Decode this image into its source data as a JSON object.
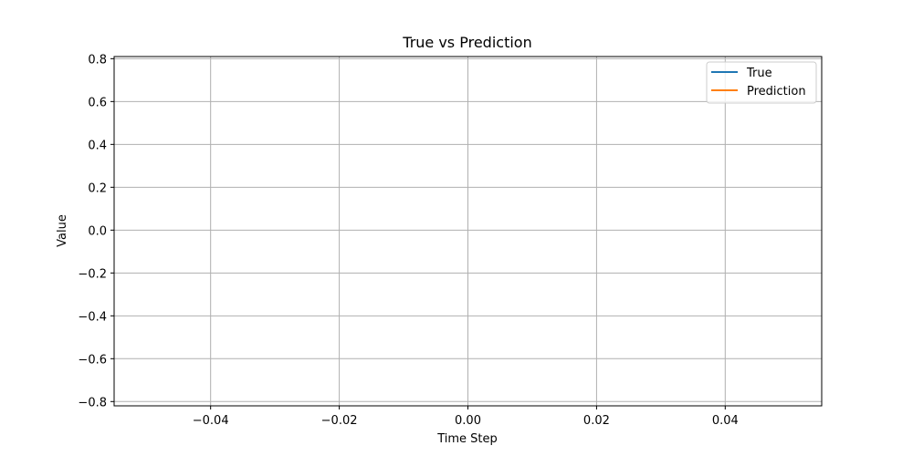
{
  "chart_data": {
    "type": "line",
    "title": "True vs Prediction",
    "xlabel": "Time Step",
    "ylabel": "Value",
    "xlim": [
      -0.055,
      0.055
    ],
    "ylim": [
      -0.82,
      0.81
    ],
    "xticks": [
      -0.04,
      -0.02,
      0.0,
      0.02,
      0.04
    ],
    "xtick_labels": [
      "−0.04",
      "−0.02",
      "0.00",
      "0.02",
      "0.04"
    ],
    "yticks": [
      -0.8,
      -0.6,
      -0.4,
      -0.2,
      0.0,
      0.2,
      0.4,
      0.6,
      0.8
    ],
    "ytick_labels": [
      "−0.8",
      "−0.6",
      "−0.4",
      "−0.2",
      "0.0",
      "0.2",
      "0.4",
      "0.6",
      "0.8"
    ],
    "grid": true,
    "legend_position": "top-right",
    "series": [
      {
        "name": "True",
        "color": "#1f77b4",
        "x": [],
        "y": []
      },
      {
        "name": "Prediction",
        "color": "#ff7f0e",
        "x": [],
        "y": []
      }
    ]
  }
}
